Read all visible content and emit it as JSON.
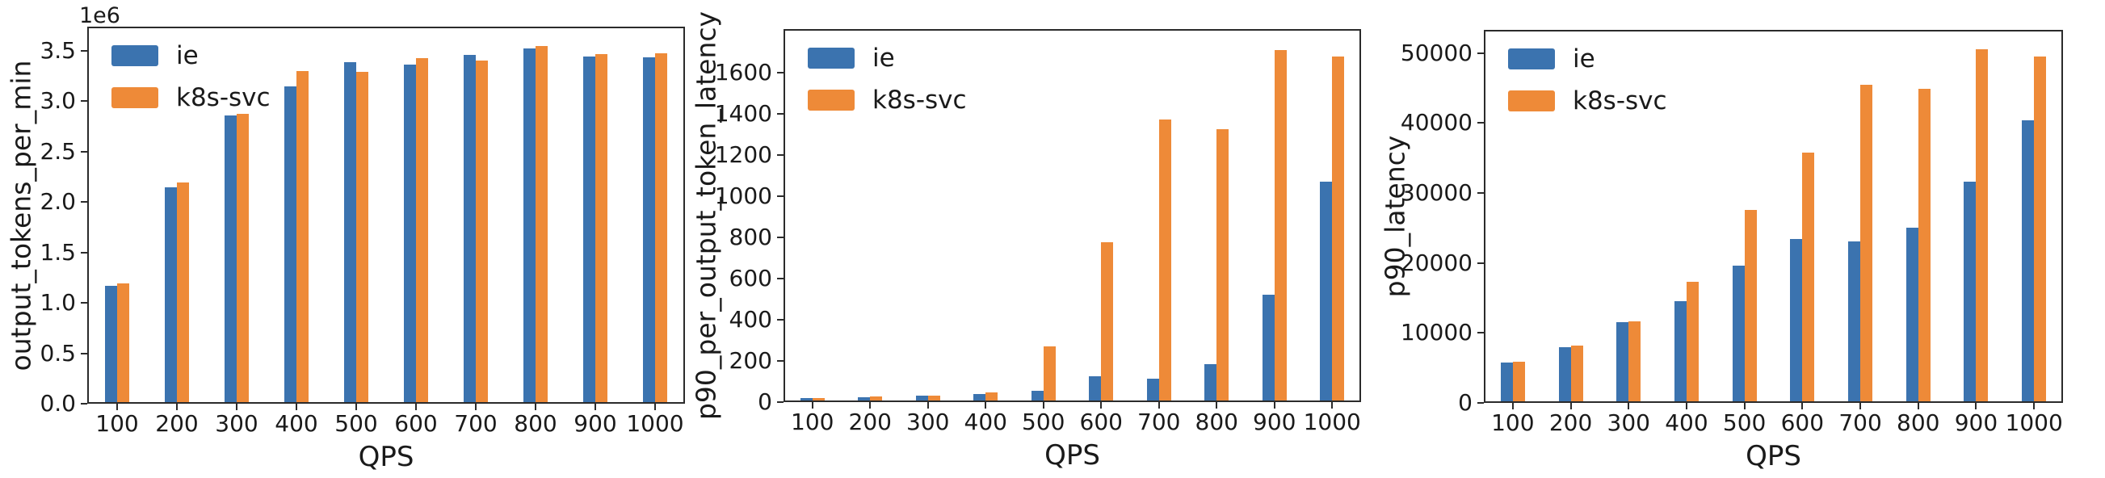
{
  "figure_background": "#ffffff",
  "legend": {
    "position": "upper left",
    "series": [
      {
        "label": "ie",
        "color": "#3b73af"
      },
      {
        "label": "k8s-svc",
        "color": "#ee8a38"
      }
    ]
  },
  "chart_data": [
    {
      "type": "bar",
      "title": "",
      "ylabel": "output_tokens_per_min",
      "xlabel": "QPS",
      "offset_label": "1e6",
      "grid": false,
      "legend_position": "upper left",
      "categories": [
        "100",
        "200",
        "300",
        "400",
        "500",
        "600",
        "700",
        "800",
        "900",
        "1000"
      ],
      "series": [
        {
          "name": "ie",
          "values": [
            1160000,
            2150000,
            2870000,
            3160000,
            3400000,
            3380000,
            3470000,
            3540000,
            3460000,
            3450000
          ]
        },
        {
          "name": "k8s-svc",
          "values": [
            1190000,
            2200000,
            2880000,
            3310000,
            3300000,
            3440000,
            3420000,
            3560000,
            3480000,
            3490000
          ]
        }
      ],
      "ylim": [
        0,
        3740000
      ],
      "yticks": [
        0,
        500000,
        1000000,
        1500000,
        2000000,
        2500000,
        3000000,
        3500000
      ],
      "ytick_labels": [
        "0.0",
        "0.5",
        "1.0",
        "1.5",
        "2.0",
        "2.5",
        "3.0",
        "3.5"
      ]
    },
    {
      "type": "bar",
      "title": "",
      "ylabel": "p90_per_output_token_latency",
      "xlabel": "QPS",
      "offset_label": "",
      "grid": false,
      "legend_position": "upper left",
      "categories": [
        "100",
        "200",
        "300",
        "400",
        "500",
        "600",
        "700",
        "800",
        "900",
        "1000"
      ],
      "series": [
        {
          "name": "ie",
          "values": [
            10,
            17,
            22,
            33,
            47,
            118,
            105,
            178,
            518,
            1070
          ]
        },
        {
          "name": "k8s-svc",
          "values": [
            10,
            18,
            23,
            38,
            266,
            773,
            1375,
            1328,
            1714,
            1685
          ]
        }
      ],
      "ylim": [
        0,
        1810
      ],
      "yticks": [
        0,
        200,
        400,
        600,
        800,
        1000,
        1200,
        1400,
        1600
      ],
      "ytick_labels": [
        "0",
        "200",
        "400",
        "600",
        "800",
        "1000",
        "1200",
        "1400",
        "1600"
      ]
    },
    {
      "type": "bar",
      "title": "",
      "ylabel": "p90_latency",
      "xlabel": "QPS",
      "offset_label": "",
      "grid": false,
      "legend_position": "upper left",
      "categories": [
        "100",
        "200",
        "300",
        "400",
        "500",
        "600",
        "700",
        "800",
        "900",
        "1000"
      ],
      "series": [
        {
          "name": "ie",
          "values": [
            5600,
            7800,
            11350,
            14450,
            19600,
            23400,
            23100,
            25050,
            31700,
            40550
          ]
        },
        {
          "name": "k8s-svc",
          "values": [
            5750,
            8000,
            11550,
            17250,
            27550,
            35900,
            45650,
            45050,
            50700,
            49650
          ]
        }
      ],
      "ylim": [
        0,
        53300
      ],
      "yticks": [
        0,
        10000,
        20000,
        30000,
        40000,
        50000
      ],
      "ytick_labels": [
        "0",
        "10000",
        "20000",
        "30000",
        "40000",
        "50000"
      ]
    }
  ]
}
